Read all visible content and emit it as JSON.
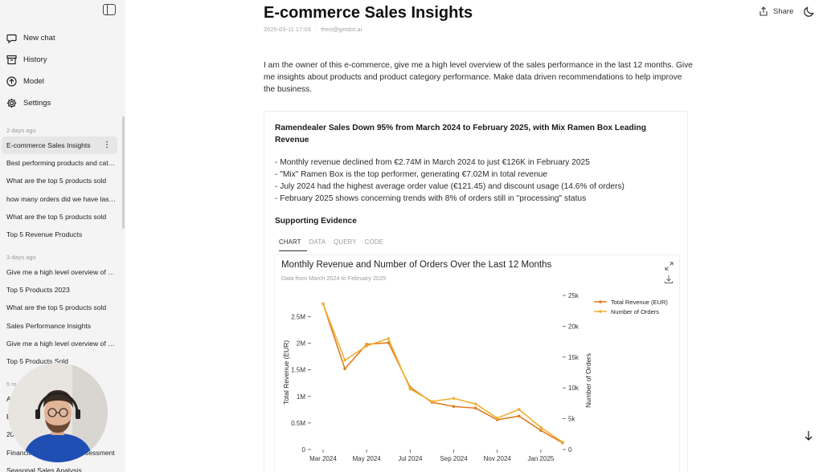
{
  "sidebar": {
    "nav": [
      {
        "label": "New chat",
        "icon": "chat-bubble-icon"
      },
      {
        "label": "History",
        "icon": "archive-icon"
      },
      {
        "label": "Model",
        "icon": "arrow-up-circle-icon"
      },
      {
        "label": "Settings",
        "icon": "gear-icon"
      }
    ],
    "groups": [
      {
        "label": "2 days ago",
        "items": [
          "E-commerce Sales Insights",
          "Best performing products and categories",
          "What are the top 5 products sold",
          "how many orders did we have last month",
          "What are the top 5 products sold",
          "Top 5 Revenue Products"
        ]
      },
      {
        "label": "3 days ago",
        "items": [
          "Give me a high level overview of sales",
          "Top 5 Products 2023",
          "What are the top 5 products sold",
          "Sales Performance Insights",
          "Give me a high level overview of sales",
          "Top 5 Products Sold"
        ]
      }
    ],
    "partial_items": [
      "5 m",
      "A",
      "B",
      "20",
      "Financial Performance Assessment",
      "Seasonal Sales Analysis"
    ]
  },
  "header": {
    "share_label": "Share",
    "title": "E-commerce Sales Insights",
    "date": "2025-03-11 17:03",
    "user": "theo@getdot.ai"
  },
  "prompt": "I am the owner of this e-commerce, give me a high level overview of the sales performance in the last 12 months. Give me insights about products and product category performance. Make data driven recommendations to help improve the business.",
  "answer": {
    "title": "Ramendealer Sales Down 95% from March 2024 to February 2025, with Mix Ramen Box Leading Revenue",
    "bullets": [
      "- Monthly revenue declined from €2.74M in March 2024 to just €126K in February 2025",
      "- \"Mix\" Ramen Box is the top performer, generating €7.02M in total revenue",
      "- July 2024 had the highest average order value (€121.45) and discount usage (14.6% of orders)",
      "- February 2025 shows concerning trends with 8% of orders still in \"processing\" status"
    ],
    "evidence_label": "Supporting Evidence",
    "tabs": [
      "CHART",
      "DATA",
      "QUERY",
      "CODE"
    ],
    "active_tab": "CHART"
  },
  "chart_data": {
    "type": "line",
    "title": "Monthly Revenue and Number of Orders Over the Last 12 Months",
    "subtitle": "Data from March 2024 to February 2025",
    "x": [
      "2024-03",
      "2024-04",
      "2024-05",
      "2024-06",
      "2024-07",
      "2024-08",
      "2024-09",
      "2024-10",
      "2024-11",
      "2024-12",
      "2025-01",
      "2025-02"
    ],
    "x_tick_labels": [
      "Mar 2024",
      "May 2024",
      "Jul 2024",
      "Sep 2024",
      "Nov 2024",
      "Jan 2025"
    ],
    "y_left": {
      "label": "Total Revenue (EUR)",
      "ticks": [
        "0",
        "0.5M",
        "1M",
        "1.5M",
        "2M",
        "2.5M"
      ],
      "range": [
        0,
        2900000
      ]
    },
    "y_right": {
      "label": "Number of Orders",
      "ticks": [
        "0",
        "5k",
        "10k",
        "15k",
        "20k",
        "25k"
      ],
      "range": [
        0,
        25000
      ]
    },
    "series": [
      {
        "name": "Total Revenue (EUR)",
        "axis": "left",
        "color": "#e07b20",
        "values": [
          2740000,
          1520000,
          1980000,
          2010000,
          1170000,
          890000,
          810000,
          780000,
          560000,
          630000,
          360000,
          126000
        ]
      },
      {
        "name": "Number of Orders",
        "axis": "right",
        "color": "#f0b135",
        "values": [
          23600,
          14500,
          16800,
          18000,
          9800,
          7800,
          8300,
          7400,
          5100,
          6500,
          3600,
          1200
        ]
      }
    ],
    "legend": "top-right",
    "grid": false
  }
}
